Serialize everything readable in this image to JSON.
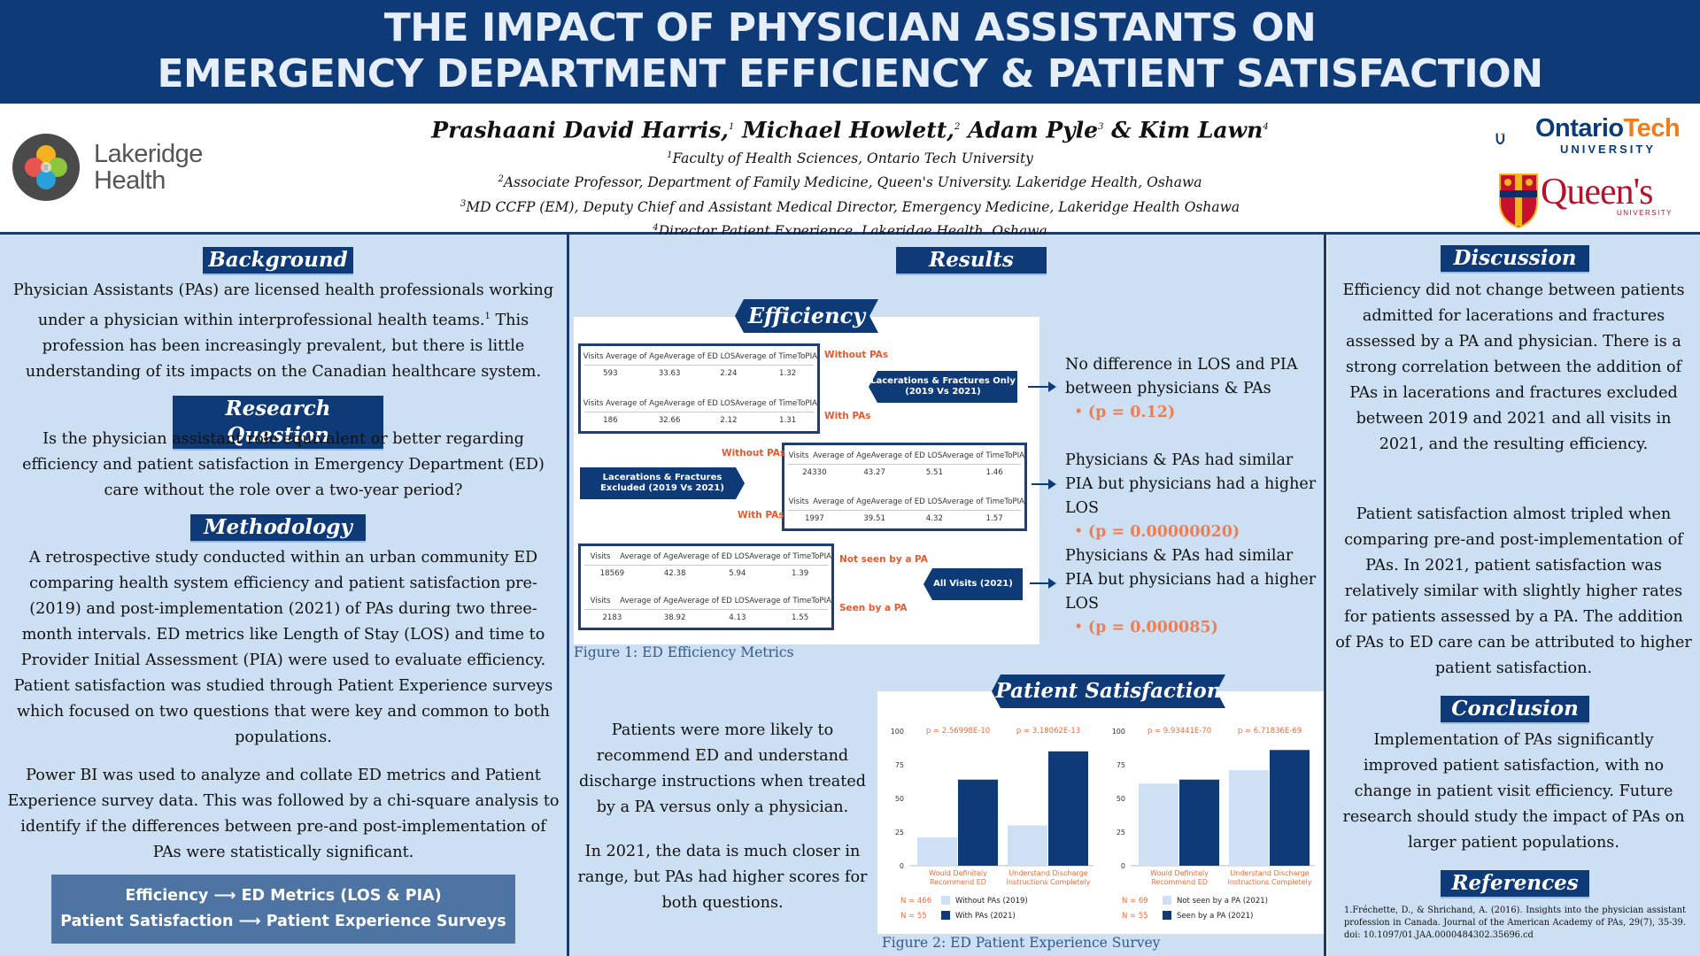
{
  "title": {
    "line1": "THE IMPACT OF PHYSICIAN ASSISTANTS ON",
    "line2": "EMERGENCY DEPARTMENT EFFICIENCY & PATIENT SATISFACTION"
  },
  "header": {
    "authors": [
      {
        "name": "Prashaani David Harris,",
        "sup": "1"
      },
      {
        "name": "Michael Howlett,",
        "sup": "2"
      },
      {
        "name": "Adam Pyle",
        "sup": "3"
      },
      {
        "name": "& Kim Lawn",
        "sup": "4"
      }
    ],
    "affiliations": [
      {
        "sup": "1",
        "text": "Faculty of Health Sciences, Ontario Tech University"
      },
      {
        "sup": "2",
        "text": "Associate Professor, Department of Family Medicine, Queen's University. Lakeridge Health, Oshawa"
      },
      {
        "sup": "3",
        "text": "MD CCFP (EM), Deputy Chief and Assistant Medical Director, Emergency Medicine, Lakeridge Health Oshawa"
      },
      {
        "sup": "4",
        "text": "Director Patient Experience, Lakeridge Health, Oshawa"
      }
    ],
    "logos": {
      "lakeridge_line1": "Lakeridge",
      "lakeridge_line2": "Health",
      "ontario_a": "Ontario",
      "ontario_b": "Tech",
      "ontario_sub": "UNIVERSITY",
      "queens": "Queen's",
      "queens_sub": "UNIVERSITY"
    },
    "colors": {
      "navy": "#0e3a78",
      "orange": "#ef7d1d",
      "red": "#b6132b"
    }
  },
  "background": {
    "title": "Background",
    "text": "Physician Assistants (PAs) are licensed health professionals working under a physician within interprofessional health teams.",
    "sup": "1",
    "text2": "This profession has been increasingly prevalent, but there is little understanding of its impacts on the Canadian healthcare system."
  },
  "research_question": {
    "title": "Research Question",
    "text": "Is the physician assistant role equivalent or better regarding efficiency and patient satisfaction in Emergency Department (ED) care without the role over a two-year period?"
  },
  "methodology": {
    "title": "Methodology",
    "p1": "A retrospective study conducted within an urban community ED comparing health system efficiency and patient satisfaction pre- (2019) and post-implementation (2021) of PAs during two three-month intervals. ED metrics like Length of Stay (LOS) and time to Provider Initial Assessment (PIA) were used to evaluate efficiency. Patient satisfaction was studied through Patient Experience surveys which focused on two questions that were key and common to both populations.",
    "p2": "Power BI was used to analyze and collate ED metrics and Patient Experience survey data. This was followed by a chi-square analysis to identify if the differences between pre-and post-implementation of PAs were statistically significant.",
    "box_line1": "Efficiency ⟶ ED Metrics (LOS & PIA)",
    "box_line2": "Patient Satisfaction ⟶ Patient Experience Surveys"
  },
  "results": {
    "title": "Results",
    "efficiency_title": "Efficiency",
    "columns": [
      "Visits",
      "Average of Age",
      "Average of ED LOS",
      "Average of TimeToPIA"
    ],
    "groups": [
      {
        "label": "Lacerations & Fractures Only (2019 Vs 2021)",
        "rows": [
          {
            "label": "Without PAs",
            "values": [
              "593",
              "33.63",
              "2.24",
              "1.32"
            ]
          },
          {
            "label": "With PAs",
            "values": [
              "186",
              "32.66",
              "2.12",
              "1.31"
            ]
          }
        ],
        "finding": "No difference in LOS and PIA between physicians & PAs",
        "p": "(p = 0.12)"
      },
      {
        "label": "Lacerations & Fractures Excluded (2019 Vs 2021)",
        "rows": [
          {
            "label": "Without PAs",
            "values": [
              "24330",
              "43.27",
              "5.51",
              "1.46"
            ]
          },
          {
            "label": "With PAs",
            "values": [
              "1997",
              "39.51",
              "4.32",
              "1.57"
            ]
          }
        ],
        "finding": "Physicians & PAs had similar PIA but physicians had a higher LOS",
        "p": "(p = 0.00000020)"
      },
      {
        "label": "All Visits (2021)",
        "rows": [
          {
            "label": "Not seen by a PA",
            "values": [
              "18569",
              "42.38",
              "5.94",
              "1.39"
            ]
          },
          {
            "label": "Seen by a PA",
            "values": [
              "2183",
              "38.92",
              "4.13",
              "1.55"
            ]
          }
        ],
        "finding": "Physicians & PAs had similar PIA but physicians had a higher LOS",
        "p": "(p = 0.000085)"
      }
    ],
    "fig1_caption": "Figure 1: ED Efficiency Metrics",
    "ps_title": "Patient Satisfaction",
    "ps_text1": "Patients were more likely to recommend ED and understand discharge instructions when treated by a PA versus only a physician.",
    "ps_text2": "In 2021, the data is much closer in range, but PAs had higher scores for both questions.",
    "fig2_caption": "Figure 2: ED Patient Experience Survey"
  },
  "chart_data": [
    {
      "type": "bar",
      "categories": [
        "Would Definitely Recommend ED",
        "Understand Discharge Instructions Completely"
      ],
      "series": [
        {
          "name": "Without PAs (2019)",
          "values": [
            21,
            30
          ],
          "color": "#cfe0f5"
        },
        {
          "name": "With PAs (2021)",
          "values": [
            64,
            85
          ],
          "color": "#0e3a78"
        }
      ],
      "p_values": [
        "p = 2.56998E-10",
        "p = 3.18062E-13"
      ],
      "n_labels": [
        "N = 466",
        "N = 55"
      ],
      "ylim": [
        0,
        100
      ],
      "yticks": [
        0,
        25,
        50,
        75,
        100
      ]
    },
    {
      "type": "bar",
      "categories": [
        "Would Definitely Recommend ED",
        "Understand Discharge Instructions Completely"
      ],
      "series": [
        {
          "name": "Not seen by a PA (2021)",
          "values": [
            61,
            71
          ],
          "color": "#cfe0f5"
        },
        {
          "name": "Seen by a PA (2021)",
          "values": [
            64,
            86
          ],
          "color": "#0e3a78"
        }
      ],
      "p_values": [
        "p = 9.93441E-70",
        "p = 6.71836E-69"
      ],
      "n_labels": [
        "N = 69",
        "N = 55"
      ],
      "ylim": [
        0,
        100
      ],
      "yticks": [
        0,
        25,
        50,
        75,
        100
      ]
    }
  ],
  "discussion": {
    "title": "Discussion",
    "p1": "Efficiency did not change between patients admitted for lacerations and fractures assessed by a PA and physician. There is a strong correlation between the addition of PAs in lacerations and fractures excluded between 2019 and 2021 and all visits in 2021, and the resulting efficiency.",
    "p2": "Patient satisfaction almost tripled when comparing pre-and post-implementation of PAs. In 2021, patient satisfaction was relatively similar with slightly higher rates for patients assessed by a PA. The addition of PAs to ED care can be attributed to higher patient satisfaction."
  },
  "conclusion": {
    "title": "Conclusion",
    "text": "Implementation of PAs significantly improved patient satisfaction, with no change in patient visit efficiency. Future research should study the impact of PAs on larger patient populations."
  },
  "references": {
    "title": "References",
    "items": [
      "1.Fréchette, D., & Shrichand, A. (2016). Insights into the physician assistant profession in Canada. Journal of the American Academy of PAs, 29(7), 35-39. doi: 10.1097/01.JAA.0000484302.35696.cd"
    ]
  }
}
